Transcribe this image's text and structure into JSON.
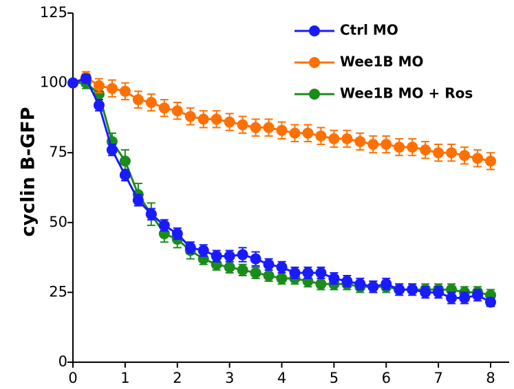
{
  "chart_data": {
    "type": "line",
    "ylabel": "cyclin B-GFP",
    "x": [
      0,
      0.25,
      0.5,
      0.75,
      1,
      1.25,
      1.5,
      1.75,
      2,
      2.25,
      2.5,
      2.75,
      3,
      3.25,
      3.5,
      3.75,
      4,
      4.25,
      4.5,
      4.75,
      5,
      5.25,
      5.5,
      5.75,
      6,
      6.25,
      6.5,
      6.75,
      7,
      7.25,
      7.5,
      7.75,
      8
    ],
    "xlim": [
      0,
      8.35
    ],
    "xticks": [
      0,
      1,
      2,
      3,
      4,
      5,
      6,
      7,
      8
    ],
    "ylim": [
      0,
      125
    ],
    "yticks": [
      0,
      25,
      50,
      75,
      100,
      125
    ],
    "legend": "upper right",
    "series": [
      {
        "name": "Ctrl MO",
        "color": "#1a1aff",
        "values": [
          100,
          101.5,
          92,
          76,
          67,
          58,
          53,
          49,
          46,
          41,
          40,
          38,
          38,
          38.5,
          37,
          35,
          34,
          32,
          32,
          32,
          30,
          29,
          28,
          27,
          28,
          26,
          26,
          25,
          25,
          23,
          23,
          24,
          21.5
        ],
        "errors": [
          1,
          1.5,
          2,
          2,
          2,
          2,
          2,
          2,
          2,
          2,
          2,
          2,
          2,
          2.5,
          2.5,
          2,
          2,
          2,
          2,
          2,
          2,
          2,
          2,
          2,
          2,
          2,
          2,
          2,
          2,
          2,
          2,
          2,
          1.5
        ]
      },
      {
        "name": "Wee1B MO",
        "color": "#ff7000",
        "values": [
          100,
          102,
          99,
          98,
          97,
          94,
          93,
          91,
          90,
          88,
          87,
          87,
          86,
          85,
          84,
          84,
          83,
          82,
          82,
          81,
          80,
          80,
          79,
          78,
          78,
          77,
          77,
          76,
          75,
          75,
          74,
          73,
          72
        ],
        "errors": [
          1,
          2,
          2.5,
          3,
          3,
          3,
          3,
          3,
          3,
          3,
          3,
          3,
          3,
          3,
          3,
          3,
          3,
          3,
          3,
          3,
          3,
          3,
          3,
          3,
          3,
          3,
          3,
          3,
          3,
          3,
          3,
          3,
          3
        ]
      },
      {
        "name": "Wee1B MO + Ros",
        "color": "#1a8c1a",
        "values": [
          100,
          100,
          96,
          79,
          72,
          60,
          53,
          46,
          44,
          40,
          37,
          35,
          34,
          33,
          32,
          31,
          30,
          30,
          29,
          28,
          28,
          28,
          27,
          27,
          27,
          26,
          26,
          26,
          26,
          26,
          25,
          25,
          24
        ],
        "errors": [
          1,
          2,
          2,
          3,
          4,
          4,
          4,
          3,
          3,
          3,
          2,
          2,
          2,
          2,
          2,
          2,
          2,
          2,
          2,
          2,
          2,
          2,
          2,
          2,
          2,
          2,
          2,
          2,
          2,
          2,
          2,
          2,
          2
        ]
      }
    ]
  }
}
